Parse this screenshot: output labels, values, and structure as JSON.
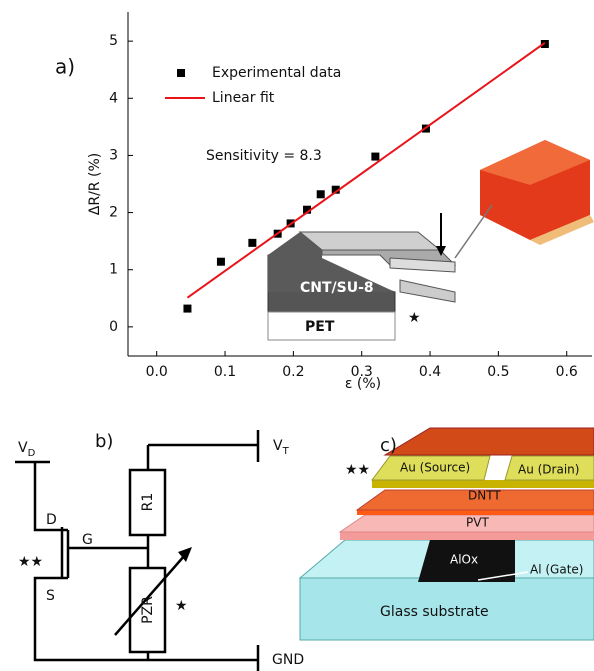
{
  "chart_data": {
    "type": "scatter",
    "panel_label": "a)",
    "xlabel": "ε (%)",
    "ylabel": "ΔR/R (%)",
    "xlim": [
      -0.042,
      0.637
    ],
    "ylim": [
      -0.51,
      5.51
    ],
    "xticks": [
      {
        "value": 0,
        "label": "0.0"
      },
      0.1,
      0.2,
      0.3,
      0.4,
      0.5,
      0.6
    ],
    "yticks": [
      0,
      1,
      2,
      3,
      4,
      5
    ],
    "series": [
      {
        "name": "Experimental data",
        "color": "#000000",
        "marker": "square",
        "x": [
          0.045,
          0.094,
          0.14,
          0.177,
          0.196,
          0.22,
          0.24,
          0.262,
          0.32,
          0.394,
          0.568
        ],
        "values": [
          0.32,
          1.14,
          1.47,
          1.63,
          1.81,
          2.05,
          2.32,
          2.4,
          2.98,
          3.47,
          4.95
        ]
      },
      {
        "name": "Linear fit",
        "color": "#e8141a",
        "marker": "line",
        "x": [
          0.045,
          0.568
        ],
        "values": [
          0.51,
          4.97
        ]
      }
    ],
    "annotations": [
      "Sensitivity = 8.3"
    ],
    "inset_labels": [
      "CNT/SU-8",
      "PET",
      "★"
    ]
  },
  "panel_b": {
    "label": "b)",
    "vd": [
      "V",
      "D"
    ],
    "vt": [
      "V",
      "T"
    ],
    "drain": "D",
    "gate": "G",
    "source": "S",
    "stars": "★★",
    "r1": "R1",
    "pzr": "PZR",
    "star": "★",
    "gnd": "GND"
  },
  "panel_c": {
    "label": "c)",
    "stars": "★★",
    "source": "Au (Source)",
    "drain": "Au (Drain)",
    "dntt": "DNTT",
    "pvt": "PVT",
    "aloxide": "AlOx",
    "gate": "Al (Gate)",
    "substrate": "Glass substrate"
  }
}
